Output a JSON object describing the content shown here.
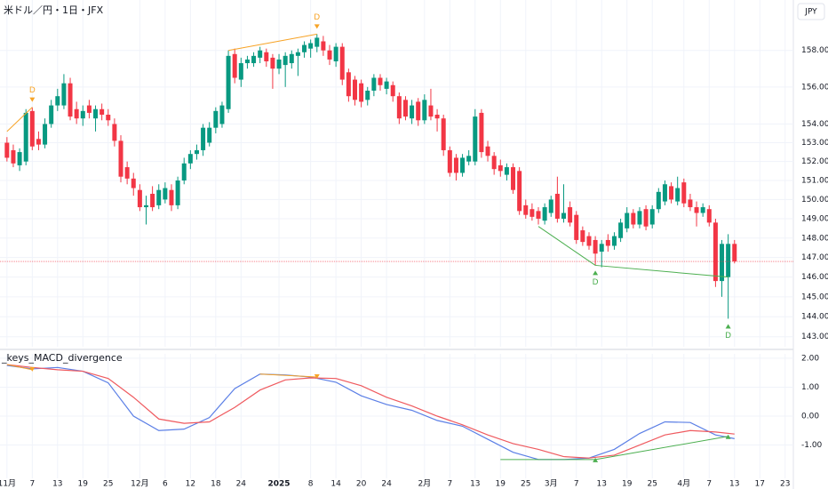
{
  "chart_data": {
    "type": "candlestick",
    "title": "米ドル／円・1日・JFX",
    "currency": "JPY",
    "log": true,
    "grid": true,
    "up_color": "#089981",
    "down_color": "#f23645",
    "xlim": [
      -1.1,
      124.3
    ],
    "xticks": [
      {
        "value": 0,
        "label": "11月"
      },
      {
        "value": 4,
        "label": "7"
      },
      {
        "value": 8,
        "label": "13"
      },
      {
        "value": 12,
        "label": "19"
      },
      {
        "value": 16,
        "label": "25"
      },
      {
        "value": 21,
        "label": "12月"
      },
      {
        "value": 25,
        "label": "6"
      },
      {
        "value": 29,
        "label": "12"
      },
      {
        "value": 33,
        "label": "18"
      },
      {
        "value": 37,
        "label": "24"
      },
      {
        "value": 43,
        "label": "2025"
      },
      {
        "value": 48,
        "label": "8"
      },
      {
        "value": 52,
        "label": "14"
      },
      {
        "value": 56,
        "label": "20"
      },
      {
        "value": 60,
        "label": "24"
      },
      {
        "value": 66,
        "label": "2月"
      },
      {
        "value": 70,
        "label": "7"
      },
      {
        "value": 74,
        "label": "13"
      },
      {
        "value": 78,
        "label": "19"
      },
      {
        "value": 82,
        "label": "25"
      },
      {
        "value": 86,
        "label": "3月"
      },
      {
        "value": 90,
        "label": "7"
      },
      {
        "value": 94,
        "label": "13"
      },
      {
        "value": 98,
        "label": "19"
      },
      {
        "value": 102,
        "label": "25"
      },
      {
        "value": 107,
        "label": "4月"
      },
      {
        "value": 111,
        "label": "7"
      },
      {
        "value": 115,
        "label": "13"
      },
      {
        "value": 119,
        "label": "17"
      },
      {
        "value": 123,
        "label": "23"
      }
    ],
    "ylim": [
      142.5,
      160.8
    ],
    "yticks": [
      {
        "value": 158,
        "label": "158.000"
      },
      {
        "value": 156,
        "label": "156.000"
      },
      {
        "value": 154,
        "label": "154.000"
      },
      {
        "value": 153,
        "label": "153.000"
      },
      {
        "value": 152,
        "label": "152.000"
      },
      {
        "value": 151,
        "label": "151.000"
      },
      {
        "value": 150,
        "label": "150.000"
      },
      {
        "value": 149,
        "label": "149.000"
      },
      {
        "value": 148,
        "label": "148.000"
      },
      {
        "value": 147,
        "label": "147.000"
      },
      {
        "value": 146,
        "label": "146.000"
      },
      {
        "value": 145,
        "label": "145.000"
      },
      {
        "value": 144,
        "label": "144.000"
      },
      {
        "value": 143,
        "label": "143.000"
      }
    ],
    "ohlc": [
      [
        153.0,
        153.3,
        152.0,
        152.2
      ],
      [
        152.6,
        152.9,
        151.7,
        151.9
      ],
      [
        151.8,
        152.7,
        151.5,
        152.5
      ],
      [
        152.0,
        154.8,
        151.8,
        154.6
      ],
      [
        154.7,
        154.9,
        152.6,
        152.8
      ],
      [
        153.2,
        153.6,
        152.6,
        152.9
      ],
      [
        152.9,
        154.3,
        152.7,
        154.0
      ],
      [
        154.0,
        155.3,
        153.8,
        155.0
      ],
      [
        155.0,
        155.9,
        154.7,
        155.5
      ],
      [
        155.0,
        156.7,
        154.8,
        156.2
      ],
      [
        156.2,
        156.5,
        154.2,
        154.4
      ],
      [
        154.8,
        155.2,
        154.0,
        154.3
      ],
      [
        154.3,
        155.0,
        153.9,
        154.7
      ],
      [
        155.0,
        155.3,
        154.3,
        154.6
      ],
      [
        154.3,
        155.0,
        153.6,
        154.8
      ],
      [
        154.8,
        155.1,
        154.2,
        154.5
      ],
      [
        154.5,
        154.8,
        153.9,
        154.2
      ],
      [
        154.0,
        154.3,
        152.8,
        153.1
      ],
      [
        153.1,
        153.4,
        150.9,
        151.2
      ],
      [
        151.7,
        152.0,
        150.8,
        151.1
      ],
      [
        151.1,
        151.4,
        150.2,
        150.6
      ],
      [
        150.5,
        150.8,
        149.4,
        149.6
      ],
      [
        149.6,
        150.2,
        148.7,
        149.7
      ],
      [
        150.3,
        150.7,
        149.4,
        149.6
      ],
      [
        149.7,
        150.8,
        149.5,
        150.5
      ],
      [
        150.0,
        150.9,
        149.8,
        150.6
      ],
      [
        150.5,
        150.8,
        149.4,
        149.7
      ],
      [
        149.7,
        151.2,
        149.5,
        151.0
      ],
      [
        151.0,
        152.2,
        150.8,
        151.9
      ],
      [
        151.9,
        152.6,
        151.6,
        152.4
      ],
      [
        152.4,
        152.9,
        152.1,
        152.6
      ],
      [
        152.6,
        154.0,
        152.3,
        153.8
      ],
      [
        153.0,
        154.1,
        152.8,
        153.8
      ],
      [
        153.8,
        154.9,
        153.5,
        154.7
      ],
      [
        154.0,
        155.2,
        153.8,
        155.0
      ],
      [
        154.8,
        158.0,
        154.6,
        157.7
      ],
      [
        157.8,
        158.1,
        156.2,
        156.5
      ],
      [
        156.4,
        157.6,
        156.0,
        157.3
      ],
      [
        157.3,
        157.7,
        157.0,
        157.5
      ],
      [
        157.3,
        157.9,
        157.1,
        157.7
      ],
      [
        157.6,
        158.2,
        157.3,
        158.0
      ],
      [
        157.9,
        158.1,
        157.1,
        157.4
      ],
      [
        157.6,
        157.8,
        155.9,
        157.0
      ],
      [
        157.0,
        157.8,
        156.7,
        157.5
      ],
      [
        157.2,
        157.9,
        156.0,
        157.7
      ],
      [
        157.3,
        158.0,
        157.0,
        157.8
      ],
      [
        157.7,
        158.1,
        156.6,
        157.9
      ],
      [
        157.9,
        158.5,
        157.6,
        158.3
      ],
      [
        158.1,
        158.6,
        157.6,
        158.4
      ],
      [
        158.2,
        158.9,
        157.9,
        158.7
      ],
      [
        158.5,
        158.8,
        157.7,
        158.0
      ],
      [
        158.0,
        158.3,
        157.2,
        157.5
      ],
      [
        157.4,
        158.4,
        157.1,
        158.2
      ],
      [
        158.2,
        158.4,
        156.1,
        156.4
      ],
      [
        156.8,
        157.0,
        155.2,
        155.5
      ],
      [
        156.4,
        156.6,
        155.0,
        155.3
      ],
      [
        156.2,
        156.4,
        154.9,
        155.2
      ],
      [
        155.3,
        156.0,
        155.0,
        155.8
      ],
      [
        155.8,
        156.7,
        155.5,
        156.5
      ],
      [
        156.5,
        156.7,
        155.8,
        156.1
      ],
      [
        155.9,
        156.5,
        155.6,
        156.3
      ],
      [
        156.1,
        156.3,
        155.2,
        155.5
      ],
      [
        155.5,
        155.7,
        154.0,
        154.3
      ],
      [
        155.3,
        155.5,
        154.2,
        154.4
      ],
      [
        154.3,
        155.3,
        154.0,
        155.0
      ],
      [
        155.2,
        155.4,
        153.9,
        154.2
      ],
      [
        154.2,
        155.6,
        154.0,
        155.3
      ],
      [
        155.0,
        155.9,
        154.2,
        154.4
      ],
      [
        154.5,
        154.8,
        153.6,
        154.3
      ],
      [
        154.3,
        154.5,
        152.3,
        152.6
      ],
      [
        152.6,
        152.8,
        151.2,
        151.4
      ],
      [
        152.2,
        152.4,
        151.0,
        151.4
      ],
      [
        151.4,
        152.4,
        151.2,
        152.2
      ],
      [
        152.0,
        152.6,
        151.8,
        152.3
      ],
      [
        152.0,
        154.8,
        151.8,
        154.4
      ],
      [
        154.6,
        154.8,
        152.2,
        152.5
      ],
      [
        152.8,
        153.1,
        152.0,
        152.3
      ],
      [
        152.3,
        152.5,
        151.3,
        151.6
      ],
      [
        151.8,
        152.1,
        151.2,
        151.5
      ],
      [
        151.3,
        151.9,
        151.0,
        151.7
      ],
      [
        151.7,
        151.9,
        150.3,
        150.5
      ],
      [
        151.5,
        151.7,
        149.2,
        149.4
      ],
      [
        149.7,
        150.0,
        149.0,
        149.2
      ],
      [
        149.5,
        149.8,
        148.9,
        149.1
      ],
      [
        149.4,
        149.6,
        148.7,
        149.0
      ],
      [
        148.9,
        149.8,
        148.7,
        149.6
      ],
      [
        149.3,
        150.2,
        149.1,
        150.0
      ],
      [
        150.3,
        151.2,
        148.8,
        149.0
      ],
      [
        149.0,
        150.8,
        148.8,
        149.3
      ],
      [
        149.6,
        149.9,
        148.6,
        148.8
      ],
      [
        149.2,
        149.4,
        147.7,
        147.9
      ],
      [
        148.4,
        148.6,
        147.6,
        147.8
      ],
      [
        148.1,
        148.3,
        147.4,
        147.6
      ],
      [
        147.9,
        148.1,
        146.6,
        147.2
      ],
      [
        147.3,
        147.9,
        146.5,
        147.7
      ],
      [
        147.9,
        148.2,
        147.3,
        147.6
      ],
      [
        147.6,
        148.3,
        147.4,
        148.1
      ],
      [
        148.0,
        149.0,
        147.8,
        148.8
      ],
      [
        148.5,
        149.6,
        148.3,
        149.3
      ],
      [
        149.3,
        149.5,
        148.5,
        148.7
      ],
      [
        148.7,
        149.6,
        148.5,
        149.4
      ],
      [
        149.5,
        149.7,
        148.4,
        148.6
      ],
      [
        148.7,
        149.7,
        148.5,
        149.5
      ],
      [
        149.5,
        150.6,
        149.3,
        150.4
      ],
      [
        149.9,
        151.0,
        149.7,
        150.8
      ],
      [
        150.7,
        150.9,
        149.8,
        150.0
      ],
      [
        149.9,
        151.2,
        149.7,
        150.6
      ],
      [
        150.9,
        151.1,
        149.6,
        149.8
      ],
      [
        150.0,
        150.3,
        149.4,
        149.6
      ],
      [
        149.6,
        149.9,
        148.6,
        149.3
      ],
      [
        149.3,
        149.8,
        149.1,
        149.6
      ],
      [
        149.5,
        149.7,
        148.6,
        148.8
      ],
      [
        148.8,
        149.0,
        145.5,
        145.8
      ],
      [
        145.8,
        147.9,
        145.0,
        147.7
      ],
      [
        146.0,
        148.2,
        143.9,
        147.7
      ],
      [
        147.7,
        147.9,
        146.7,
        146.8
      ]
    ],
    "last_price_color": "#f23645",
    "macd": {
      "title": "_keys_MACD_divergence",
      "ylim": [
        -2.15,
        2.15
      ],
      "yticks": [
        {
          "value": 2,
          "label": "2.00"
        },
        {
          "value": 1,
          "label": "1.00"
        },
        {
          "value": 0,
          "label": "0.00"
        },
        {
          "value": -1,
          "label": "-1.00"
        }
      ],
      "x": [
        0,
        4,
        8,
        12,
        16,
        20,
        24,
        28,
        32,
        36,
        40,
        44,
        48,
        52,
        56,
        60,
        64,
        68,
        72,
        76,
        80,
        84,
        88,
        92,
        96,
        100,
        104,
        108,
        112,
        115
      ],
      "lines": [
        {
          "color": "#5b7fe6",
          "values": [
            1.75,
            1.63,
            1.68,
            1.55,
            1.15,
            0.0,
            -0.5,
            -0.45,
            -0.05,
            0.95,
            1.45,
            1.42,
            1.35,
            1.17,
            0.7,
            0.4,
            0.2,
            -0.15,
            -0.35,
            -0.8,
            -1.25,
            -1.5,
            -1.5,
            -1.45,
            -1.15,
            -0.6,
            -0.2,
            -0.22,
            -0.65,
            -0.78
          ]
        },
        {
          "color": "#ef5a5f",
          "values": [
            1.78,
            1.68,
            1.6,
            1.55,
            1.3,
            0.65,
            -0.1,
            -0.25,
            -0.2,
            0.3,
            0.9,
            1.25,
            1.32,
            1.3,
            1.05,
            0.65,
            0.35,
            0.0,
            -0.3,
            -0.65,
            -0.95,
            -1.15,
            -1.4,
            -1.45,
            -1.35,
            -1.0,
            -0.65,
            -0.5,
            -0.55,
            -0.62
          ]
        }
      ]
    },
    "divergences": [
      {
        "color": "#f7a326",
        "label": "D",
        "price_x": [
          0,
          4
        ],
        "price_y": [
          153.6,
          154.9
        ],
        "macd_x": [
          0,
          4
        ],
        "macd_y": [
          1.78,
          1.6
        ]
      },
      {
        "color": "#f7a326",
        "label": "D",
        "price_x": [
          35,
          49
        ],
        "price_y": [
          158.0,
          158.9
        ],
        "macd_x": [
          40,
          49
        ],
        "macd_y": [
          1.45,
          1.35
        ]
      },
      {
        "color": "#4caf50",
        "label": "D",
        "price_x": [
          84,
          93
        ],
        "price_y": [
          148.6,
          146.6
        ],
        "macd_x": [
          78,
          93
        ],
        "macd_y": [
          -1.5,
          -1.5
        ]
      },
      {
        "color": "#4caf50",
        "label": "D",
        "price_x": [
          93,
          114
        ],
        "price_y": [
          146.6,
          146.0
        ],
        "macd_x": [
          93,
          114
        ],
        "macd_y": [
          -1.5,
          -0.7
        ]
      }
    ]
  }
}
